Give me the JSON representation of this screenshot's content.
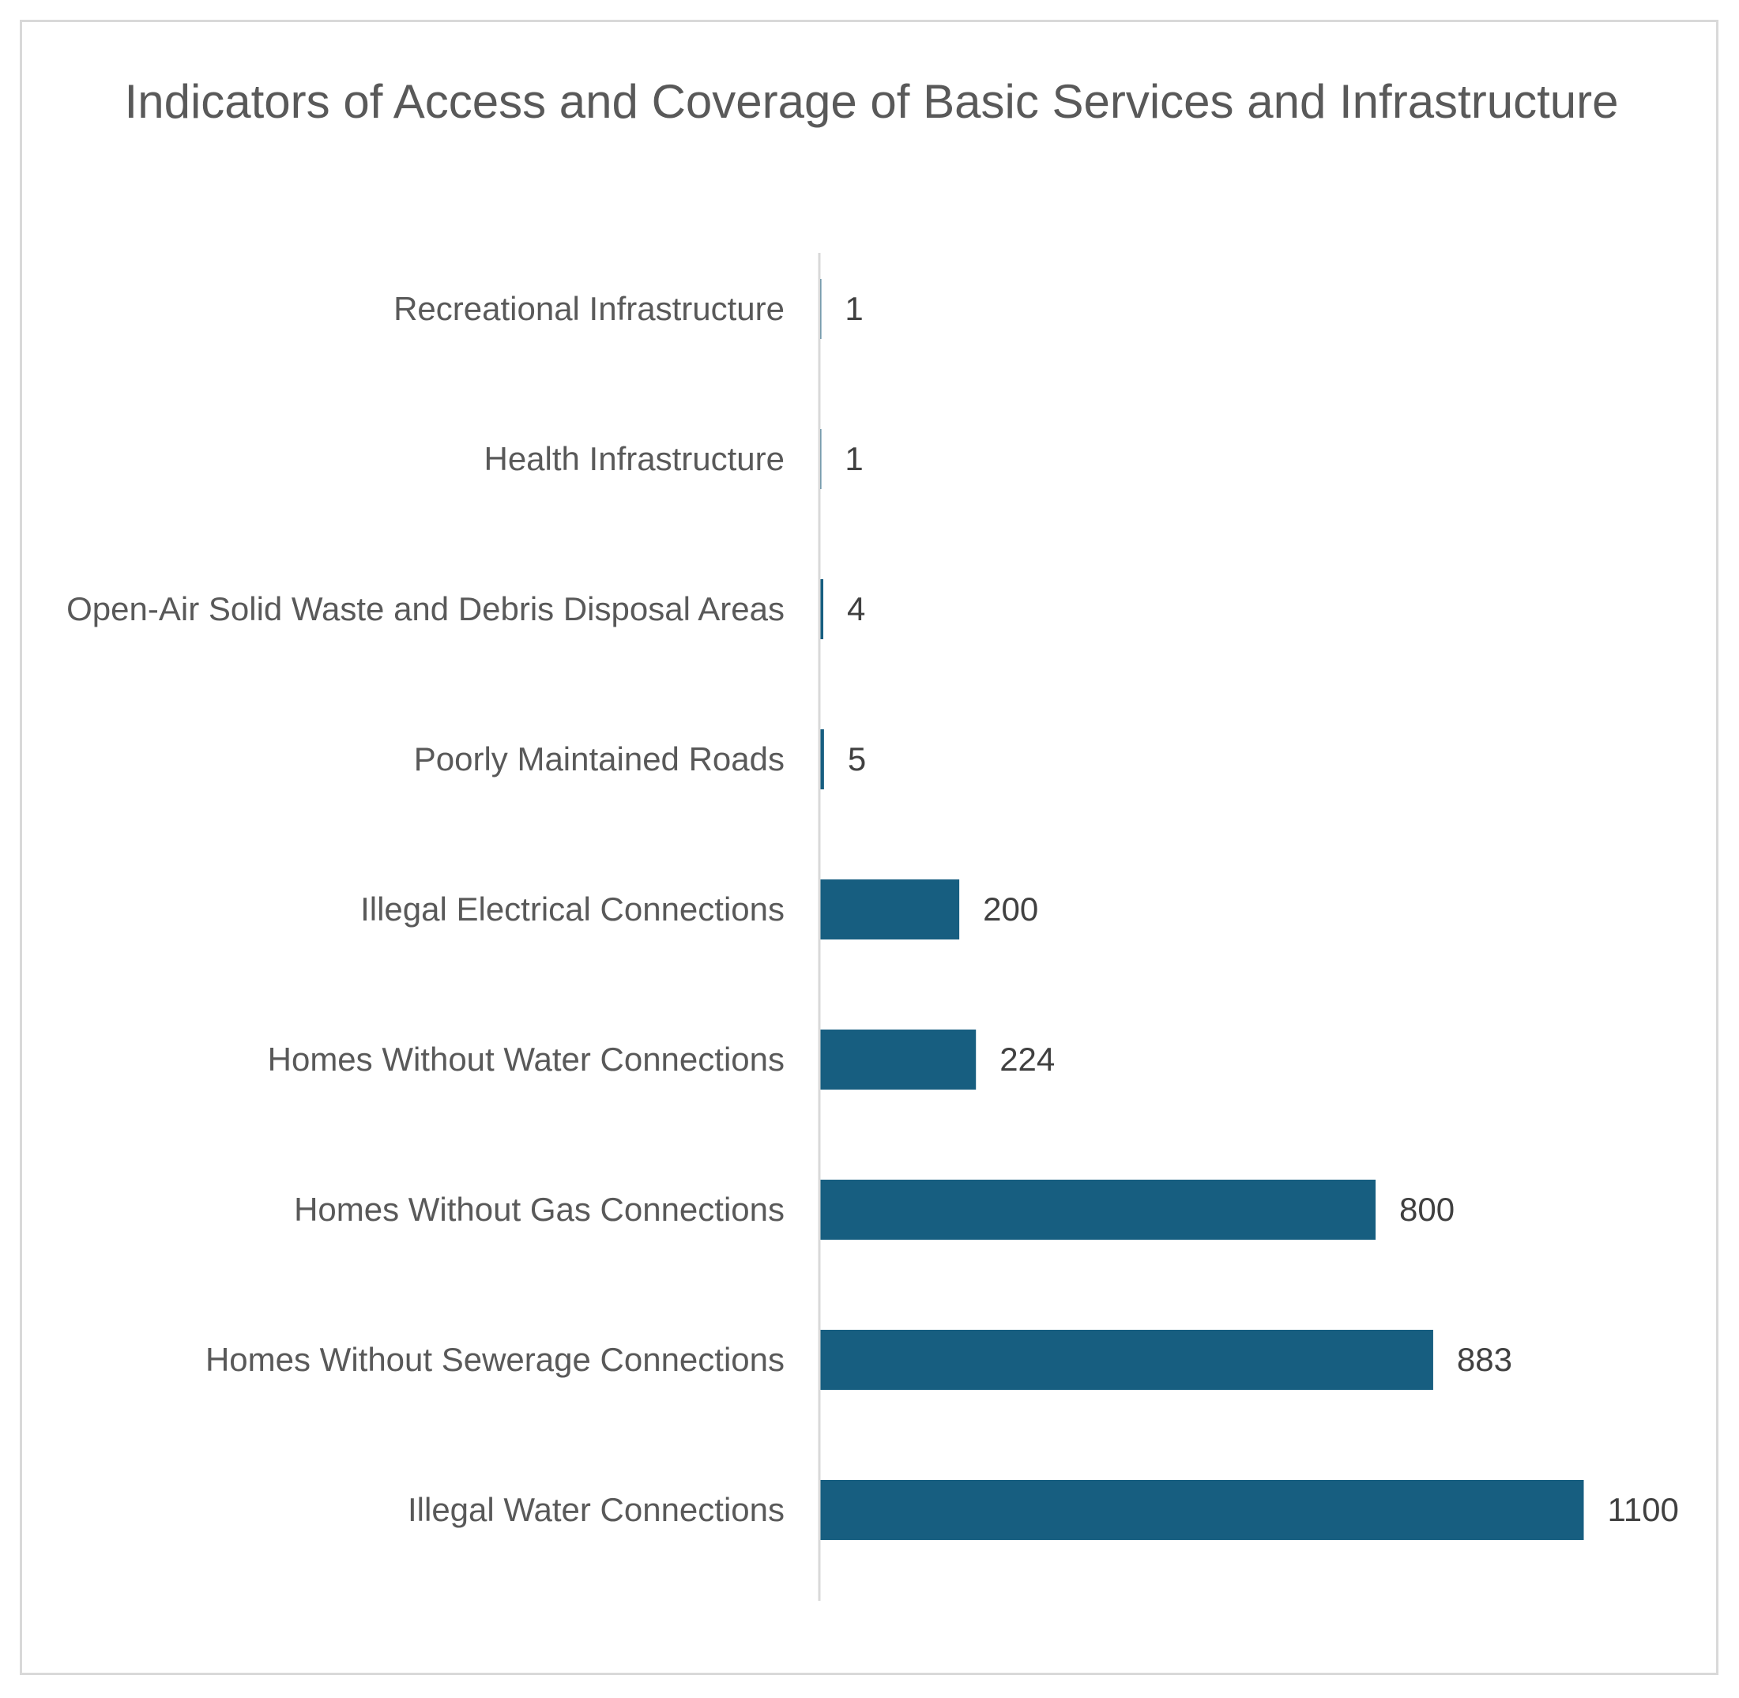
{
  "chart_data": {
    "type": "bar",
    "orientation": "horizontal",
    "title": "Indicators of Access and Coverage of Basic Services and Infrastructure",
    "categories": [
      "Recreational Infrastructure",
      "Health Infrastructure",
      "Open-Air Solid Waste and Debris Disposal Areas",
      "Poorly Maintained Roads",
      "Illegal Electrical Connections",
      "Homes Without Water Connections",
      "Homes Without Gas Connections",
      "Homes Without Sewerage Connections",
      "Illegal Water Connections"
    ],
    "values": [
      1,
      1,
      4,
      5,
      200,
      224,
      800,
      883,
      1100
    ],
    "value_labels": [
      "1",
      "1",
      "4",
      "5",
      "200",
      "224",
      "800",
      "883",
      "1100"
    ],
    "xlim": [
      0,
      1100
    ],
    "grid": false,
    "legend": "none",
    "data_labels": true,
    "bar_color": "#175e80",
    "axis_color": "#d9d9d9"
  }
}
